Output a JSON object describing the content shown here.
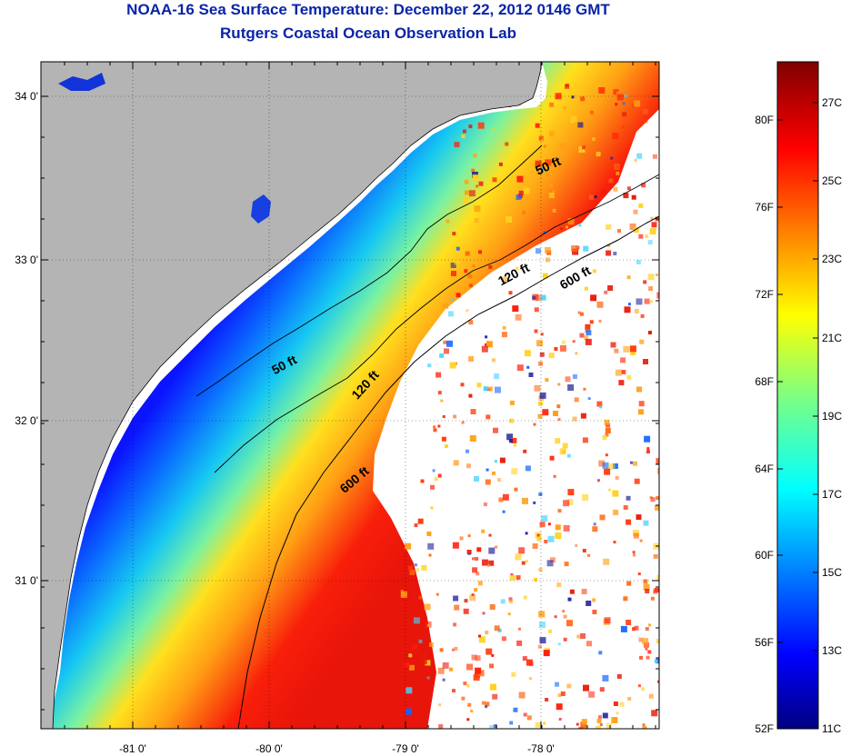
{
  "header": {
    "title_line1": "NOAA-16 Sea Surface Temperature:  December 22, 2012 0146 GMT",
    "title_line2": "Rutgers Coastal Ocean Observation Lab"
  },
  "map": {
    "longitude_ticks": [
      "-81 0'",
      "-80 0'",
      "-79 0'",
      "-78 0'"
    ],
    "latitude_ticks": [
      "34 0'",
      "33 0'",
      "32 0'",
      "31 0'"
    ],
    "isobath_labels": [
      "50 ft",
      "120 ft",
      "600 ft",
      "50 ft",
      "120 ft",
      "600 ft"
    ],
    "colors": {
      "land": "#b4b4b4",
      "no_data": "#ffffff",
      "coastline": "#000000",
      "isobath": "#000000"
    }
  },
  "colorbar": {
    "fahrenheit_labels": [
      "80F",
      "76F",
      "72F",
      "68F",
      "64F",
      "60F",
      "56F",
      "52F"
    ],
    "celsius_labels": [
      "27C",
      "25C",
      "23C",
      "21C",
      "19C",
      "17C",
      "15C",
      "13C",
      "11C"
    ],
    "colormap": "jet",
    "range_celsius": [
      11,
      28
    ]
  }
}
